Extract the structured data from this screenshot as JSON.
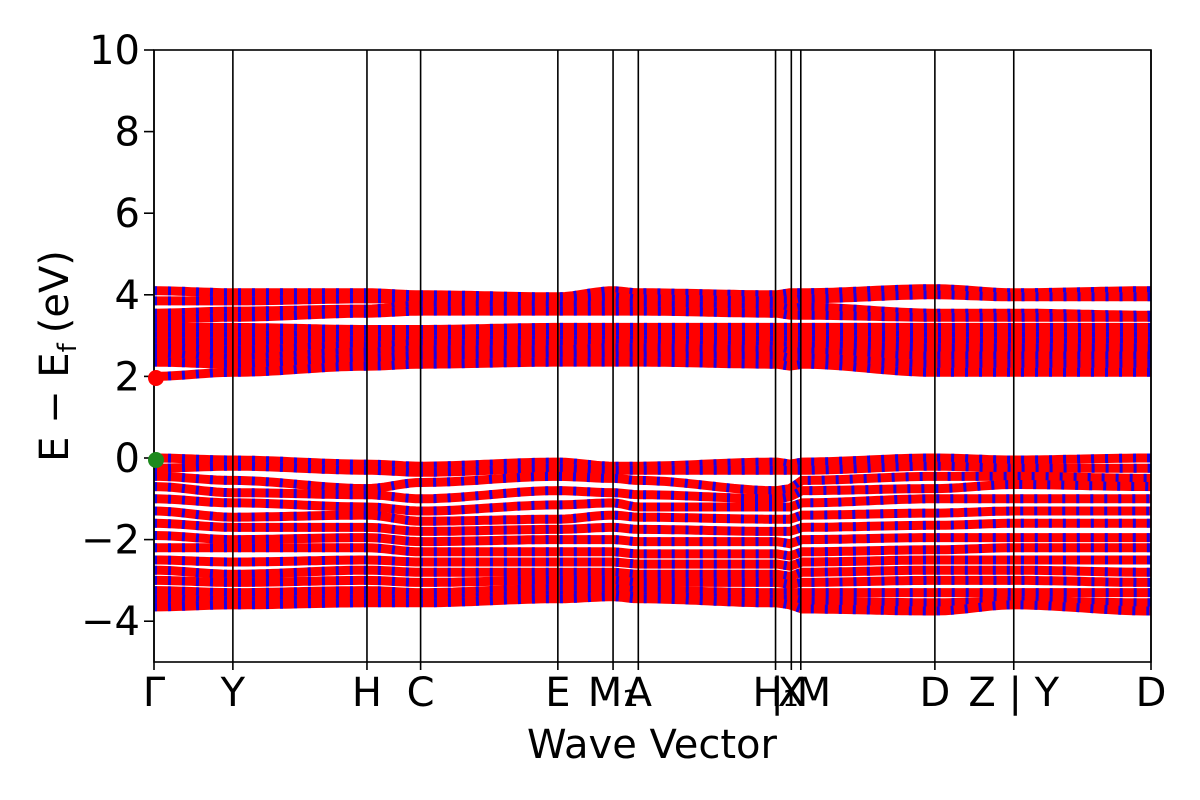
{
  "chart_data": {
    "type": "line",
    "title": "",
    "xlabel": "Wave Vector",
    "ylabel": {
      "main": "E − E",
      "sub": "f",
      "unit": "(eV)"
    },
    "ylim": [
      -5,
      10
    ],
    "yticks": [
      {
        "value": 10,
        "label": "10"
      },
      {
        "value": 8,
        "label": "8"
      },
      {
        "value": 6,
        "label": "6"
      },
      {
        "value": 4,
        "label": "4"
      },
      {
        "value": 2,
        "label": "2"
      },
      {
        "value": 0,
        "label": "0"
      },
      {
        "value": -2,
        "label": "−2"
      },
      {
        "value": -4,
        "label": "−4"
      }
    ],
    "xlim": [
      0,
      12.64
    ],
    "kpoints": [
      {
        "x": 0.0,
        "label": "Γ"
      },
      {
        "x": 1.0,
        "label": "Y"
      },
      {
        "x": 2.7,
        "label": "H"
      },
      {
        "x": 3.38,
        "label": "C"
      },
      {
        "x": 5.12,
        "label": "E"
      },
      {
        "x": 5.82,
        "label": "M₁"
      },
      {
        "x": 6.14,
        "label": "A"
      },
      {
        "x": 7.88,
        "label": "H₁"
      },
      {
        "x": 8.08,
        "label": "X"
      },
      {
        "x": 8.2,
        "label": "| M"
      },
      {
        "x": 9.9,
        "label": "D"
      },
      {
        "x": 10.9,
        "label": "Z | Y"
      },
      {
        "x": 12.64,
        "label": "D"
      }
    ],
    "series": [
      {
        "color": "#ff0000",
        "marker_color": "#0000ff",
        "values": [
          [
            4.1,
            4.05,
            4.05,
            4.0,
            3.95,
            4.1,
            4.05,
            4.0,
            4.05,
            4.05,
            4.15,
            4.05,
            4.1
          ]
        ]
      },
      {
        "color": "#ff0000",
        "values": [
          [
            3.85,
            3.85,
            3.9,
            3.9,
            3.9,
            3.95,
            3.9,
            3.85,
            3.85,
            3.9,
            4.0,
            3.95,
            3.95
          ]
        ]
      },
      {
        "color": "#ff0000",
        "values": [
          [
            3.55,
            3.6,
            3.65,
            3.75,
            3.75,
            3.75,
            3.75,
            3.7,
            3.65,
            3.7,
            3.55,
            3.55,
            3.5
          ]
        ]
      },
      {
        "color": "#ff0000",
        "values": [
          [
            3.4,
            3.45,
            3.55,
            3.6,
            3.6,
            3.6,
            3.6,
            3.55,
            3.5,
            3.5,
            3.45,
            3.45,
            3.45
          ]
        ]
      },
      {
        "color": "#ff0000",
        "values": [
          [
            3.2,
            3.2,
            3.15,
            3.15,
            3.2,
            3.2,
            3.2,
            3.2,
            3.2,
            3.2,
            3.2,
            3.2,
            3.2
          ]
        ]
      },
      {
        "color": "#ff0000",
        "values": [
          [
            3.0,
            3.0,
            3.05,
            3.05,
            3.05,
            3.05,
            3.05,
            3.05,
            3.05,
            3.05,
            3.0,
            3.0,
            3.0
          ]
        ]
      },
      {
        "color": "#ff0000",
        "values": [
          [
            2.85,
            2.85,
            2.9,
            2.9,
            2.9,
            2.9,
            2.9,
            2.9,
            2.9,
            2.9,
            2.85,
            2.85,
            2.85
          ]
        ]
      },
      {
        "color": "#ff0000",
        "values": [
          [
            2.7,
            2.65,
            2.75,
            2.8,
            2.8,
            2.8,
            2.8,
            2.75,
            2.75,
            2.75,
            2.7,
            2.7,
            2.7
          ]
        ]
      },
      {
        "color": "#ff0000",
        "values": [
          [
            2.55,
            2.45,
            2.6,
            2.65,
            2.65,
            2.7,
            2.7,
            2.65,
            2.6,
            2.6,
            2.5,
            2.5,
            2.5
          ]
        ]
      },
      {
        "color": "#ff0000",
        "values": [
          [
            2.35,
            2.3,
            2.45,
            2.5,
            2.5,
            2.5,
            2.5,
            2.5,
            2.45,
            2.45,
            2.3,
            2.3,
            2.3
          ]
        ]
      },
      {
        "color": "#ff0000",
        "values": [
          [
            2.0,
            2.1,
            2.25,
            2.3,
            2.35,
            2.35,
            2.35,
            2.3,
            2.25,
            2.3,
            2.1,
            2.1,
            2.1
          ]
        ]
      },
      {
        "color": "#ff0000",
        "values": [
          [
            0.0,
            -0.05,
            -0.15,
            -0.2,
            -0.1,
            -0.2,
            -0.2,
            -0.1,
            -0.15,
            -0.1,
            0.0,
            -0.05,
            0.0
          ]
        ]
      },
      {
        "color": "#ff0000",
        "values": [
          [
            -0.25,
            -0.2,
            -0.3,
            -0.35,
            -0.25,
            -0.3,
            -0.3,
            -0.3,
            -0.3,
            -0.3,
            -0.2,
            -0.25,
            -0.25
          ]
        ]
      },
      {
        "color": "#ff0000",
        "values": [
          [
            -0.45,
            -0.55,
            -0.75,
            -0.6,
            -0.45,
            -0.5,
            -0.55,
            -0.8,
            -0.75,
            -0.55,
            -0.45,
            -0.45,
            -0.5
          ]
        ]
      },
      {
        "color": "#ff0000",
        "values": [
          [
            -0.7,
            -0.85,
            -0.9,
            -1.0,
            -0.8,
            -0.85,
            -0.9,
            -1.0,
            -0.95,
            -0.8,
            -0.75,
            -0.65,
            -0.7
          ]
        ]
      },
      {
        "color": "#ff0000",
        "values": [
          [
            -1.0,
            -1.1,
            -1.2,
            -1.3,
            -1.15,
            -1.1,
            -1.2,
            -1.2,
            -1.2,
            -1.1,
            -1.0,
            -1.0,
            -1.0
          ]
        ]
      },
      {
        "color": "#ff0000",
        "values": [
          [
            -1.3,
            -1.45,
            -1.4,
            -1.55,
            -1.5,
            -1.4,
            -1.45,
            -1.5,
            -1.5,
            -1.4,
            -1.35,
            -1.3,
            -1.3
          ]
        ]
      },
      {
        "color": "#ff0000",
        "values": [
          [
            -1.6,
            -1.7,
            -1.7,
            -1.8,
            -1.75,
            -1.7,
            -1.75,
            -1.8,
            -1.8,
            -1.7,
            -1.65,
            -1.6,
            -1.6
          ]
        ]
      },
      {
        "color": "#ff0000",
        "values": [
          [
            -1.9,
            -2.0,
            -1.95,
            -2.05,
            -2.0,
            -2.0,
            -2.05,
            -2.05,
            -2.1,
            -2.0,
            -1.95,
            -1.95,
            -1.95
          ]
        ]
      },
      {
        "color": "#ff0000",
        "values": [
          [
            -2.2,
            -2.2,
            -2.2,
            -2.3,
            -2.3,
            -2.3,
            -2.35,
            -2.35,
            -2.4,
            -2.3,
            -2.25,
            -2.2,
            -2.2
          ]
        ]
      },
      {
        "color": "#ff0000",
        "values": [
          [
            -2.5,
            -2.55,
            -2.5,
            -2.55,
            -2.55,
            -2.55,
            -2.6,
            -2.6,
            -2.65,
            -2.55,
            -2.5,
            -2.5,
            -2.5
          ]
        ]
      },
      {
        "color": "#ff0000",
        "values": [
          [
            -2.75,
            -2.85,
            -2.75,
            -2.8,
            -2.8,
            -2.8,
            -2.85,
            -2.85,
            -2.9,
            -2.8,
            -2.75,
            -2.75,
            -2.8
          ]
        ]
      },
      {
        "color": "#ff0000",
        "values": [
          [
            -3.0,
            -3.05,
            -3.0,
            -3.05,
            -3.0,
            -3.0,
            -3.05,
            -3.05,
            -3.1,
            -3.05,
            -3.0,
            -3.0,
            -3.05
          ]
        ]
      },
      {
        "color": "#ff0000",
        "values": [
          [
            -3.25,
            -3.3,
            -3.25,
            -3.3,
            -3.2,
            -3.2,
            -3.25,
            -3.3,
            -3.3,
            -3.3,
            -3.3,
            -3.3,
            -3.3
          ]
        ]
      },
      {
        "color": "#ff0000",
        "values": [
          [
            -3.45,
            -3.5,
            -3.45,
            -3.45,
            -3.35,
            -3.35,
            -3.4,
            -3.45,
            -3.45,
            -3.5,
            -3.55,
            -3.5,
            -3.55
          ]
        ]
      },
      {
        "color": "#ff0000",
        "values": [
          [
            -3.65,
            -3.6,
            -3.55,
            -3.55,
            -3.45,
            -3.4,
            -3.45,
            -3.55,
            -3.6,
            -3.7,
            -3.75,
            -3.6,
            -3.75
          ]
        ]
      }
    ],
    "grid": false
  }
}
